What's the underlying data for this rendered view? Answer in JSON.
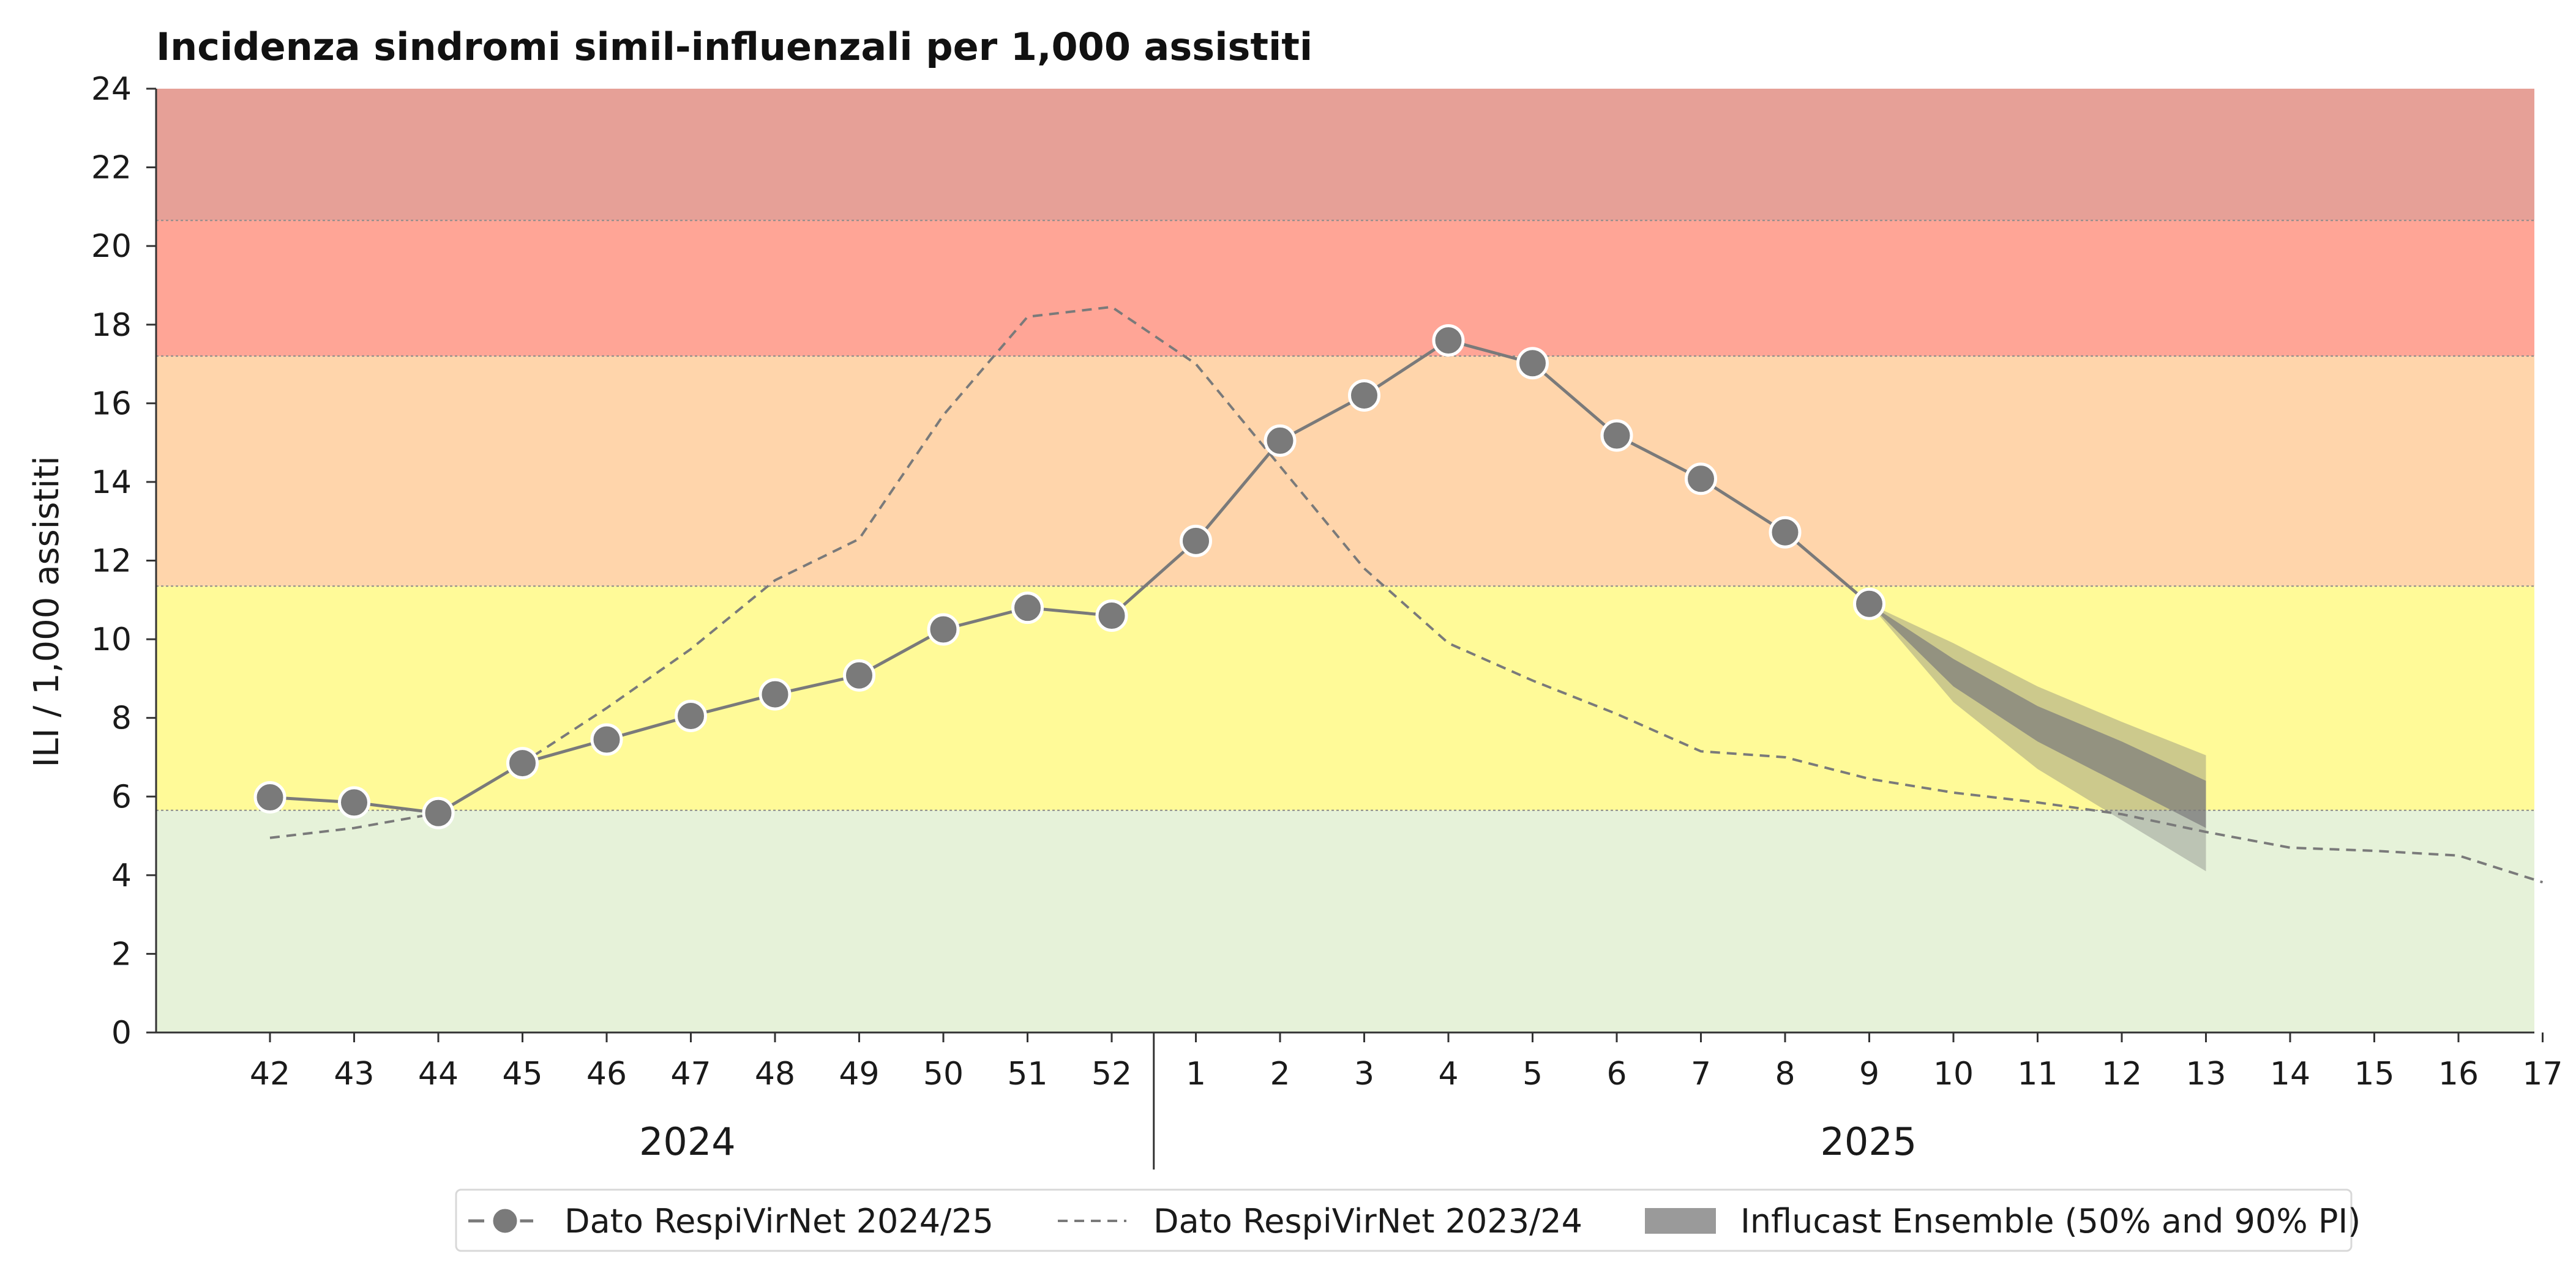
{
  "chart_data": {
    "type": "line",
    "title": "Incidenza sindromi simil-influenzali per 1,000 assistiti",
    "ylabel": "ILI / 1,000 assistiti",
    "xlabel": "",
    "ylim": [
      0,
      24
    ],
    "yticks": [
      0,
      2,
      4,
      6,
      8,
      10,
      12,
      14,
      16,
      18,
      20,
      22,
      24
    ],
    "weeks": [
      "42",
      "43",
      "44",
      "45",
      "46",
      "47",
      "48",
      "49",
      "50",
      "51",
      "52",
      "1",
      "2",
      "3",
      "4",
      "5",
      "6",
      "7",
      "8",
      "9",
      "10",
      "11",
      "12",
      "13",
      "14",
      "15",
      "16",
      "17"
    ],
    "year_labels": [
      {
        "label": "2024",
        "from_week_index": 0,
        "to_week_index": 10
      },
      {
        "label": "2025",
        "from_week_index": 11,
        "to_week_index": 27
      }
    ],
    "thresholds": [
      {
        "from": 0,
        "to": 5.65,
        "color": "#e6f2d9"
      },
      {
        "from": 5.65,
        "to": 11.35,
        "color": "#fffa98"
      },
      {
        "from": 11.35,
        "to": 17.2,
        "color": "#ffd5ab"
      },
      {
        "from": 17.2,
        "to": 20.65,
        "color": "#ffa596"
      },
      {
        "from": 20.65,
        "to": 24,
        "color": "#e6a097"
      }
    ],
    "series": [
      {
        "name": "Dato RespiVirNet 2024/25",
        "style": "solid-markers",
        "color": "#7a7a7a",
        "values": [
          5.98,
          5.85,
          5.58,
          6.85,
          7.45,
          8.05,
          8.6,
          9.08,
          10.25,
          10.8,
          10.6,
          12.5,
          15.05,
          16.2,
          17.6,
          17.02,
          15.18,
          14.08,
          12.72,
          10.9
        ]
      },
      {
        "name": "Dato RespiVirNet 2023/24",
        "style": "dashed",
        "color": "#7a7a7a",
        "values": [
          4.95,
          5.2,
          5.58,
          6.85,
          8.25,
          9.75,
          11.5,
          12.55,
          15.7,
          18.2,
          18.45,
          17.0,
          14.4,
          11.8,
          9.9,
          8.95,
          8.1,
          7.15,
          7.0,
          6.45,
          6.1,
          5.85,
          5.55,
          5.1,
          4.7,
          4.62,
          4.5,
          3.82
        ]
      }
    ],
    "forecast": {
      "name": "Influcast Ensemble (50% and 90% PI)",
      "start_week_index": 19,
      "median": [
        10.9,
        9.15,
        7.85,
        6.85,
        5.8
      ],
      "pi50_low": [
        10.9,
        8.8,
        7.4,
        6.3,
        5.2
      ],
      "pi50_high": [
        10.9,
        9.5,
        8.3,
        7.4,
        6.4
      ],
      "pi90_low": [
        10.9,
        8.4,
        6.7,
        5.4,
        4.1
      ],
      "pi90_high": [
        10.9,
        9.9,
        8.8,
        7.9,
        7.05
      ],
      "color": "#7a7a7a"
    },
    "legend_position": "bottom-center",
    "grid": false
  }
}
